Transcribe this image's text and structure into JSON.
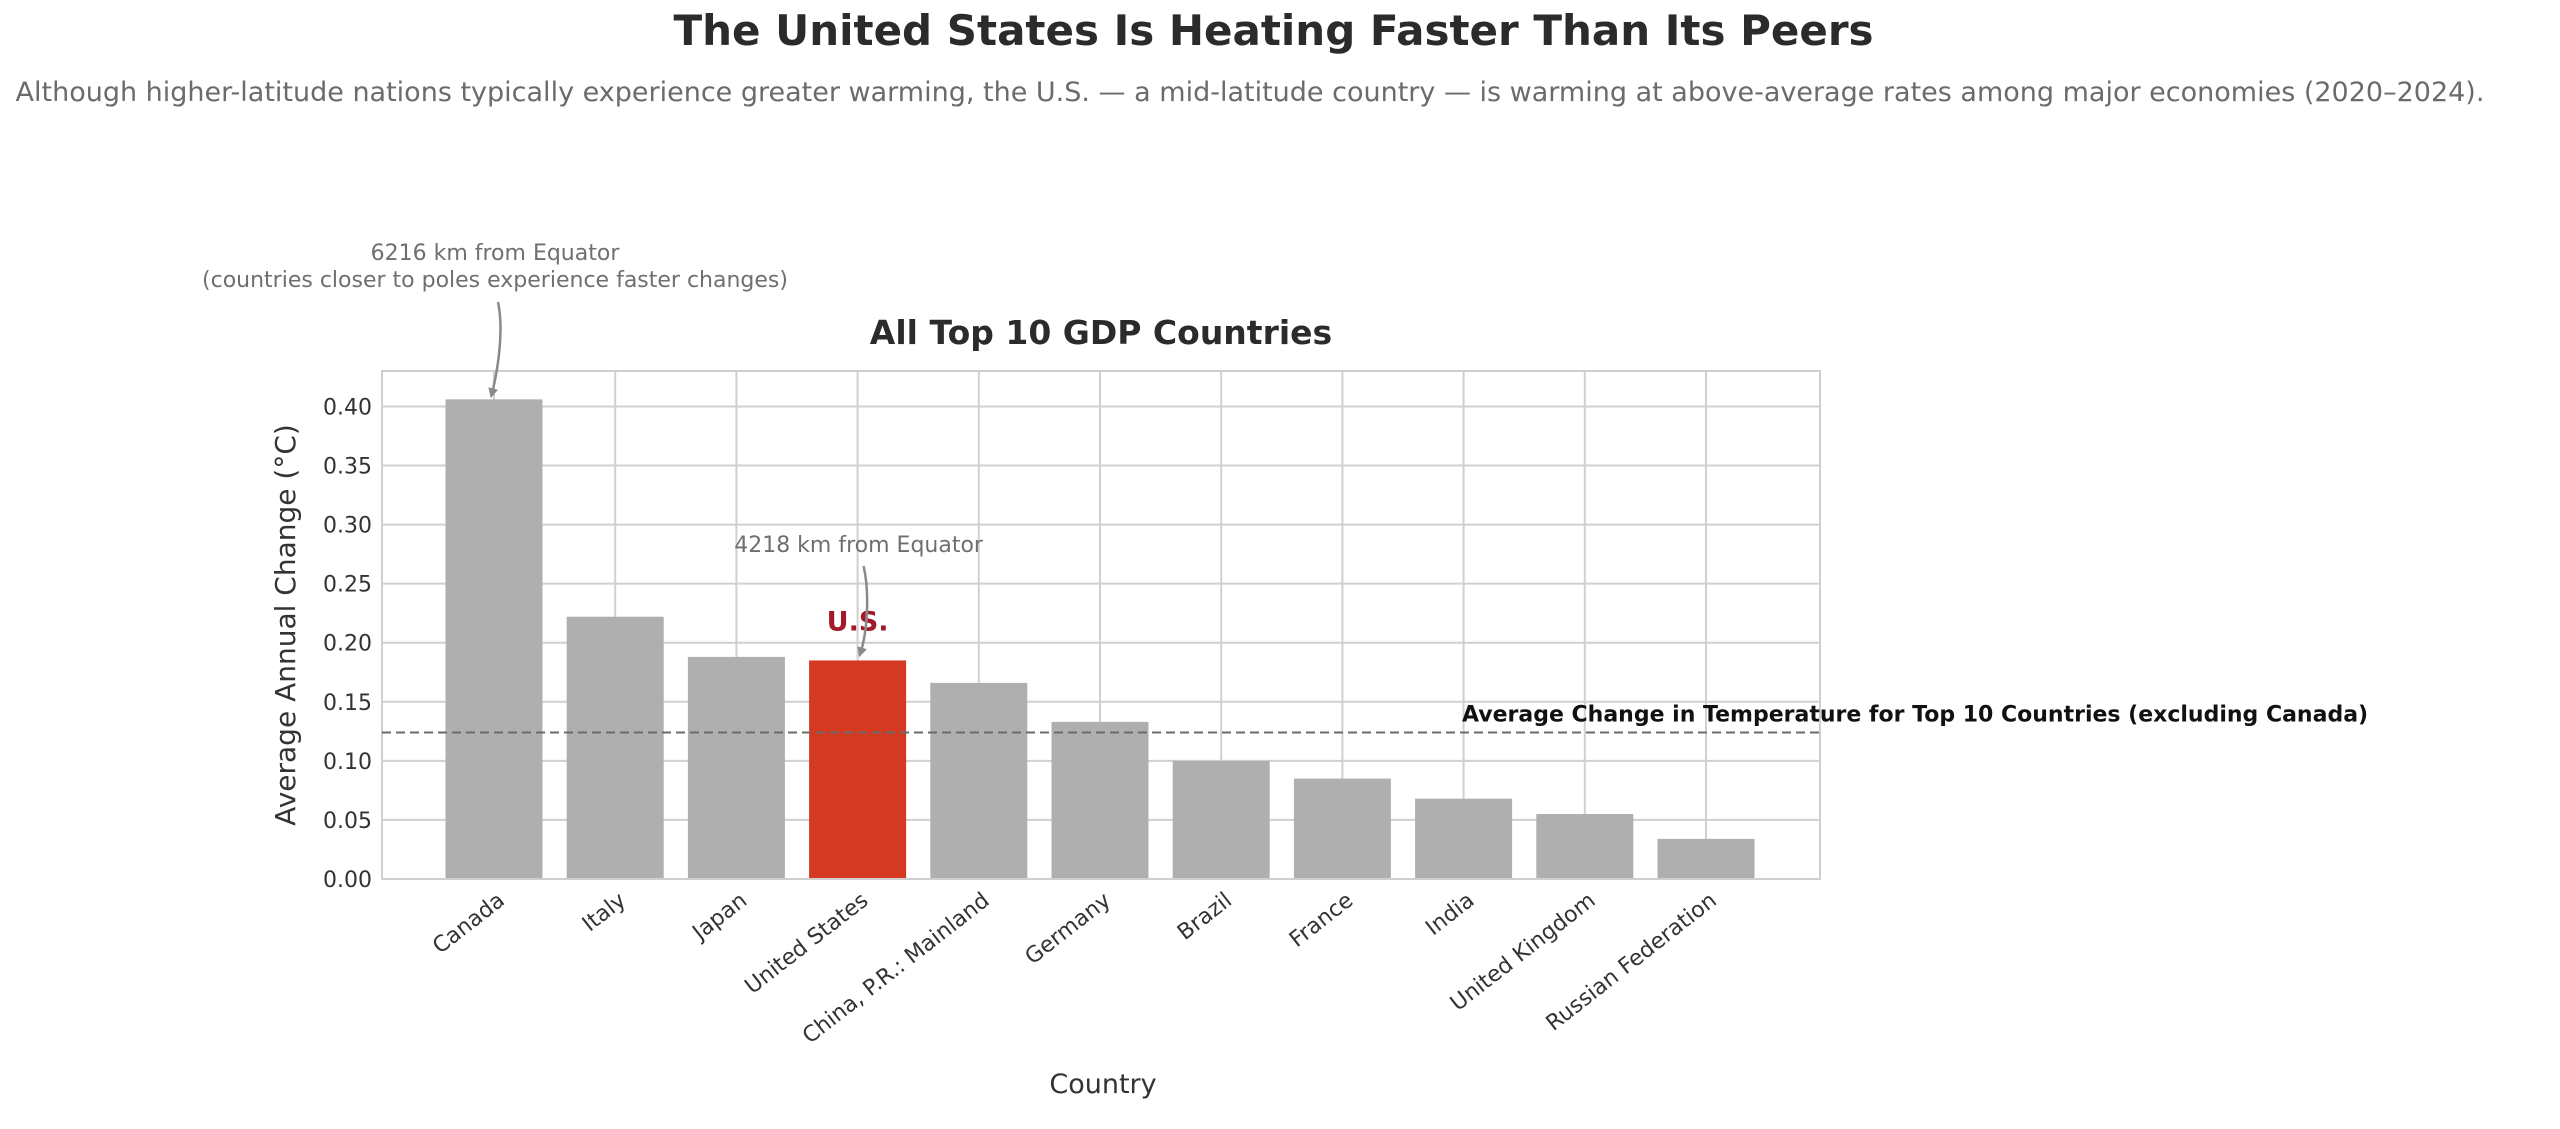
{
  "title": "The United States Is Heating Faster Than Its Peers",
  "subtitle": "Although higher-latitude nations typically experience greater warming, the U.S. — a mid-latitude country — is warming at above-average rates among major economies (2020–2024).",
  "colors": {
    "bar_default": "#afafaf",
    "bar_highlight": "#d43a22",
    "highlight_label": "#a3182a",
    "grid": "#d0d0d0",
    "mean_line": "#6b6b6b",
    "annotation": "#6f6f6f"
  },
  "chart_data": {
    "type": "bar",
    "title": "All Top 10 GDP Countries",
    "xlabel": "Country",
    "ylabel": "Average Annual Change (°C)",
    "ylim": [
      0,
      0.43
    ],
    "yticks": [
      "0.00",
      "0.05",
      "0.10",
      "0.15",
      "0.20",
      "0.25",
      "0.30",
      "0.35",
      "0.40"
    ],
    "grid": true,
    "categories": [
      "Canada",
      "Italy",
      "Japan",
      "United States",
      "China, P.R.: Mainland",
      "Germany",
      "Brazil",
      "France",
      "India",
      "United Kingdom",
      "Russian Federation"
    ],
    "values": [
      0.406,
      0.222,
      0.188,
      0.185,
      0.166,
      0.133,
      0.1,
      0.085,
      0.068,
      0.055,
      0.034
    ],
    "highlight_index": 3,
    "highlight_label": "U.S.",
    "reference_line": {
      "value": 0.124,
      "label": "Average Change in Temperature for Top 10 Countries (excluding Canada)"
    },
    "annotations": [
      {
        "target": "Canada",
        "lines": [
          "6216 km from Equator",
          "(countries closer to poles experience faster changes)"
        ]
      },
      {
        "target": "United States",
        "lines": [
          "4218 km from Equator"
        ]
      }
    ]
  }
}
